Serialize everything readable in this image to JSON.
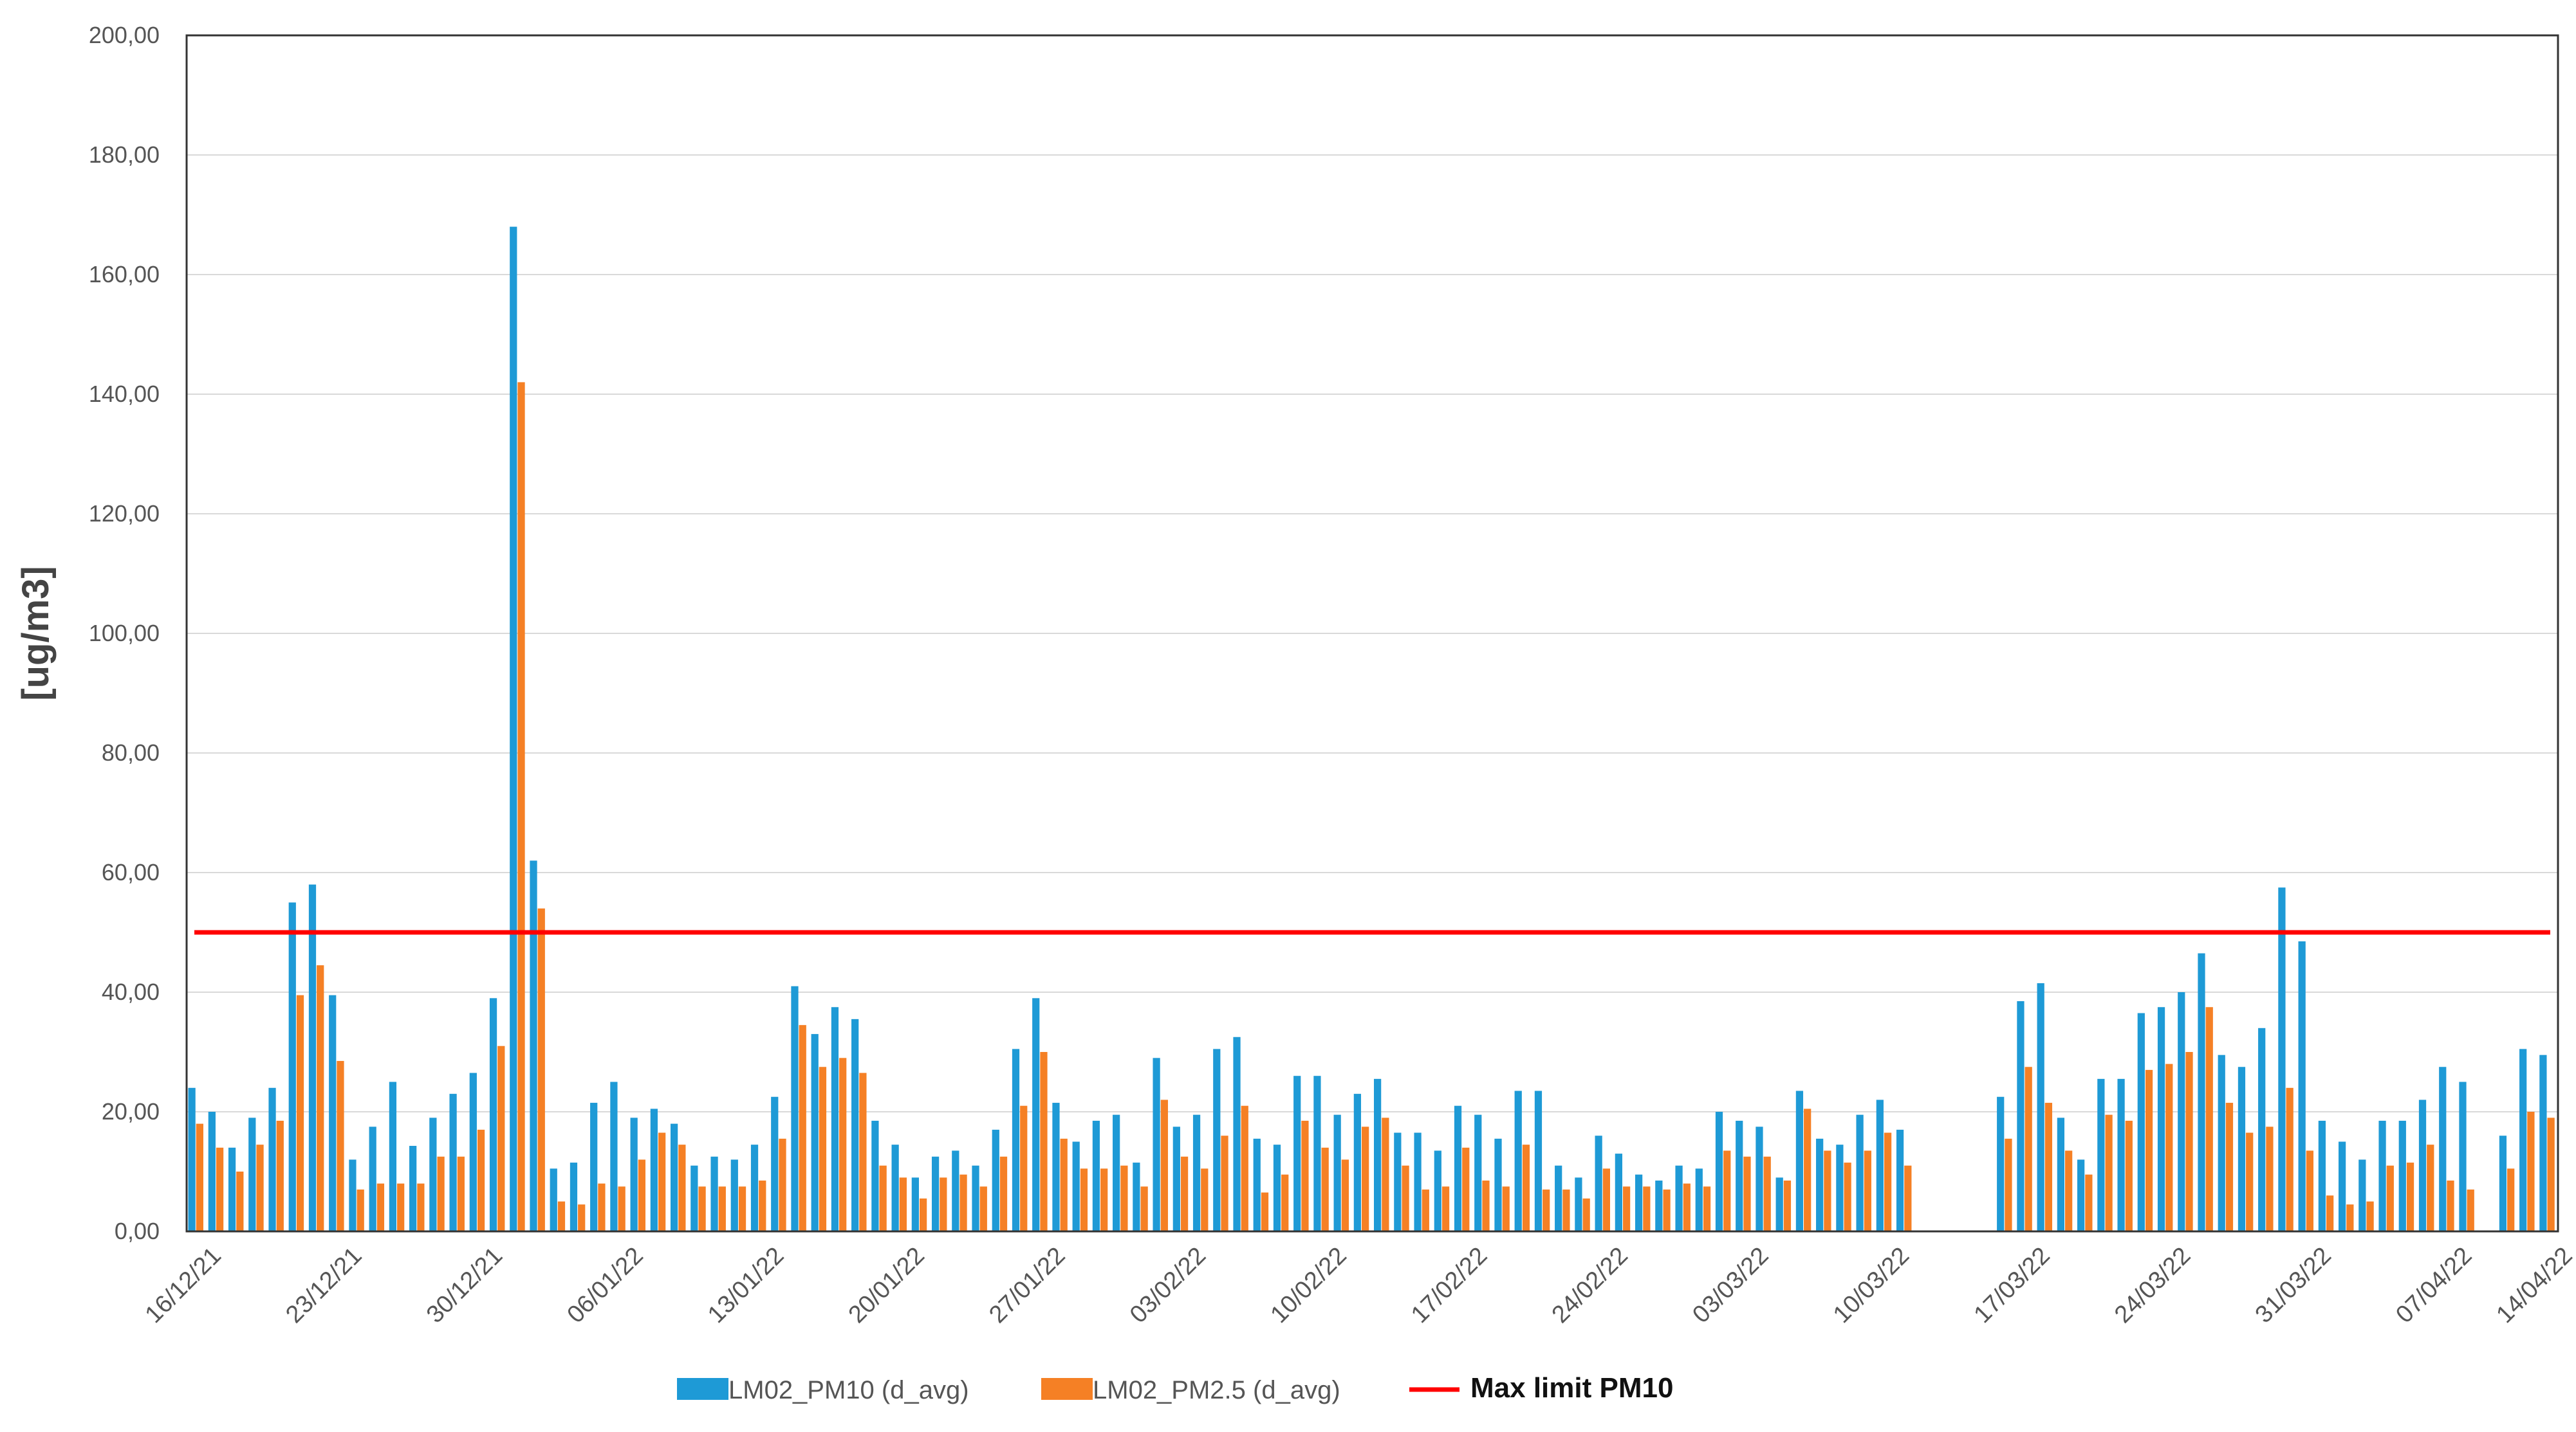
{
  "chart_data": {
    "type": "bar",
    "title": "",
    "ylabel": "[ug/m3]",
    "xlabel": "",
    "ylim": [
      0,
      200
    ],
    "yticks": [
      "0,00",
      "20,00",
      "40,00",
      "60,00",
      "80,00",
      "100,00",
      "120,00",
      "140,00",
      "160,00",
      "180,00",
      "200,00"
    ],
    "grid": true,
    "legend_position": "bottom",
    "date_start": "16/12/21",
    "x_tick_labels": [
      "16/12/21",
      "23/12/21",
      "30/12/21",
      "06/01/22",
      "13/01/22",
      "20/01/22",
      "27/01/22",
      "03/02/22",
      "10/02/22",
      "17/02/22",
      "24/02/22",
      "03/03/22",
      "10/03/22",
      "17/03/22",
      "24/03/22",
      "31/03/22",
      "07/04/22",
      "14/04/22"
    ],
    "reference_line": {
      "name": "Max limit PM10",
      "value": 50,
      "color": "#ff0000"
    },
    "series": [
      {
        "name": "LM02_PM10 (d_avg)",
        "color": "#1e9ad6",
        "values": [
          24.0,
          20.0,
          14.0,
          19.0,
          24.0,
          55.0,
          58.0,
          39.5,
          12.0,
          17.5,
          25.0,
          14.3,
          19.0,
          23.0,
          26.5,
          39.0,
          168.0,
          62.0,
          10.5,
          11.5,
          21.5,
          25.0,
          19.0,
          20.5,
          18.0,
          11.0,
          12.5,
          12.0,
          14.5,
          22.5,
          41.0,
          33.0,
          37.5,
          35.5,
          18.5,
          14.5,
          9.0,
          12.5,
          13.5,
          11.0,
          17.0,
          30.5,
          39.0,
          21.5,
          15.0,
          18.5,
          19.5,
          11.5,
          29.0,
          17.5,
          19.5,
          30.5,
          32.5,
          15.5,
          14.5,
          26.0,
          26.0,
          19.5,
          23.0,
          25.5,
          16.5,
          16.5,
          13.5,
          21.0,
          19.5,
          15.5,
          23.5,
          23.5,
          11.0,
          9.0,
          16.0,
          13.0,
          9.5,
          8.5,
          11.0,
          10.5,
          20.0,
          18.5,
          17.5,
          9.0,
          23.5,
          15.5,
          14.5,
          19.5,
          22.0,
          17.0,
          null,
          null,
          null,
          null,
          22.5,
          38.5,
          41.5,
          19.0,
          12.0,
          25.5,
          25.5,
          36.5,
          37.5,
          40.0,
          46.5,
          29.5,
          27.5,
          34.0,
          57.5,
          48.5,
          18.5,
          15.0,
          12.0,
          18.5,
          18.5,
          22.0,
          27.5,
          25.0,
          null,
          16.0,
          30.5,
          29.5
        ],
        "secondary": [
          18.0,
          14.0,
          10.0,
          14.5,
          18.5,
          39.5,
          44.5,
          28.5,
          7.0,
          8.0,
          8.0,
          8.0,
          12.5,
          12.5,
          17.0,
          31.0,
          142.0,
          54.0,
          5.0,
          4.5,
          8.0,
          7.5,
          12.0,
          16.5,
          14.5,
          7.5,
          7.5,
          7.5,
          8.5,
          15.5,
          34.5,
          27.5,
          29.0,
          26.5,
          11.0,
          9.0,
          5.5,
          9.0,
          9.5,
          7.5,
          12.5,
          21.0,
          30.0,
          15.5,
          10.5,
          10.5,
          11.0,
          7.5,
          22.0,
          12.5,
          10.5,
          16.0,
          21.0,
          6.5,
          9.5,
          18.5,
          14.0,
          12.0,
          17.5,
          19.0,
          11.0,
          7.0,
          7.5,
          14.0,
          8.5,
          7.5,
          14.5,
          7.0,
          7.0,
          5.5,
          10.5,
          7.5,
          7.5,
          7.0,
          8.0,
          7.5,
          13.5,
          12.5,
          12.5,
          8.5,
          20.5,
          13.5,
          11.5,
          13.5,
          16.5,
          11.0,
          null,
          null,
          null,
          null,
          15.5,
          27.5,
          21.5,
          13.5,
          9.5,
          19.5,
          18.5,
          27.0,
          28.0,
          30.0,
          37.5,
          21.5,
          16.5,
          17.5,
          24.0,
          13.5,
          6.0,
          4.5,
          5.0,
          11.0,
          11.5,
          14.5,
          8.5,
          7.0,
          null,
          10.5,
          20.0,
          19.0
        ]
      },
      {
        "name": "LM02_PM2.5 (d_avg)",
        "color": "#f58025"
      }
    ]
  }
}
